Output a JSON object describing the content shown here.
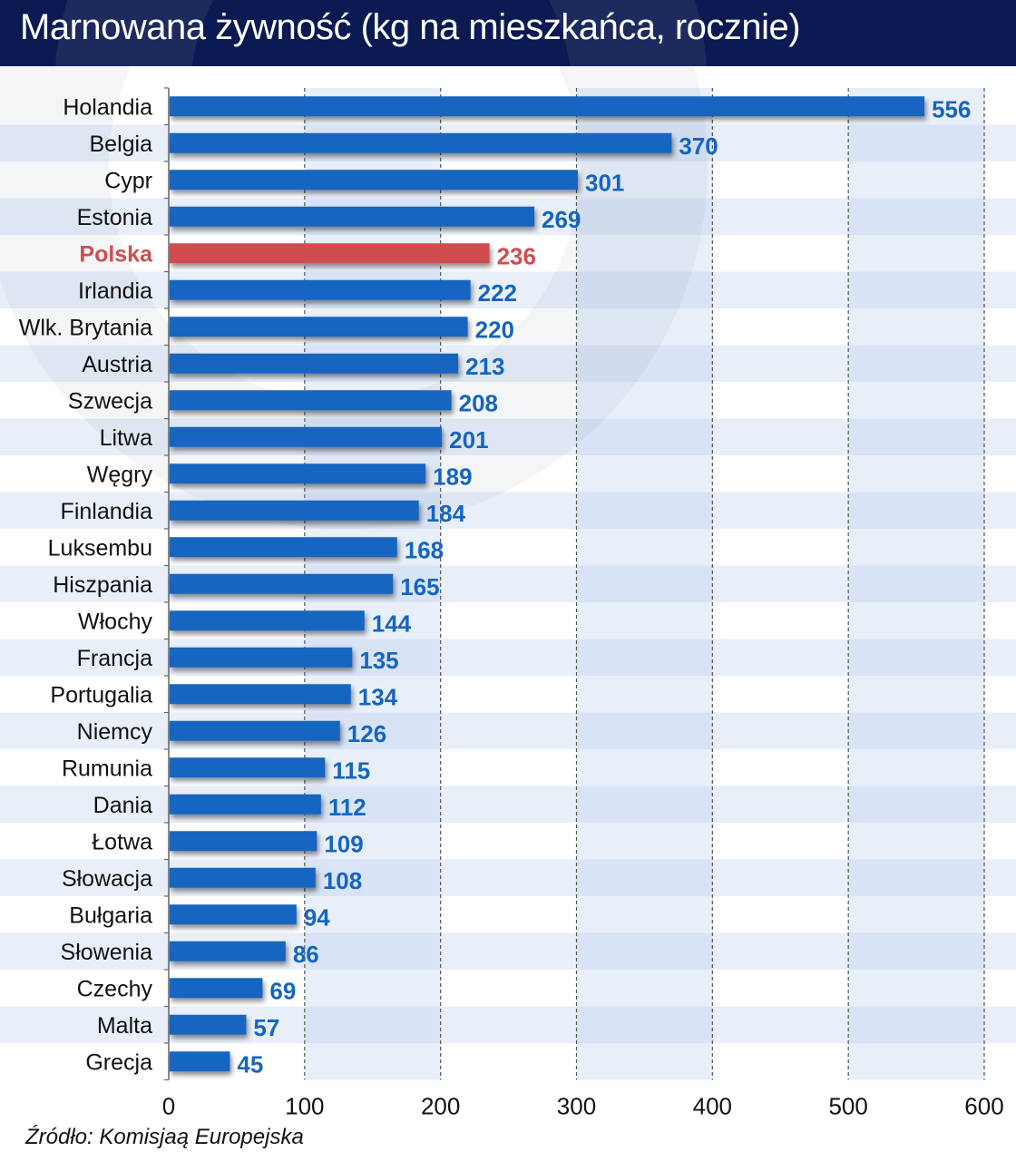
{
  "header": {
    "title": "Marnowana żywność (kg na mieszkańca, rocznie)"
  },
  "source": "Źródło: Komisjaą Europejska",
  "colors": {
    "header_bg": "#0b1a52",
    "bar": "#1565c0",
    "highlight": "#d04d50",
    "label_text": "#111111",
    "value_text": "#1565c0"
  },
  "chart_data": {
    "type": "bar",
    "orientation": "horizontal",
    "title": "Marnowana żywność (kg na mieszkańca, rocznie)",
    "xlabel": "",
    "ylabel": "",
    "xlim": [
      0,
      600
    ],
    "xticks": [
      0,
      100,
      200,
      300,
      400,
      500,
      600
    ],
    "xtick_labels": [
      "0",
      "100",
      "200",
      "300",
      "400",
      "500",
      "600"
    ],
    "grid": true,
    "legend": "none",
    "categories": [
      "Holandia",
      "Belgia",
      "Cypr",
      "Estonia",
      "Polska",
      "Irlandia",
      "Wlk. Brytania",
      "Austria",
      "Szwecja",
      "Litwa",
      "Węgry",
      "Finlandia",
      "Luksembu",
      "Hiszpania",
      "Włochy",
      "Francja",
      "Portugalia",
      "Niemcy",
      "Rumunia",
      "Dania",
      "Łotwa",
      "Słowacja",
      "Bułgaria",
      "Słowenia",
      "Czechy",
      "Malta",
      "Grecja"
    ],
    "values": [
      556,
      370,
      301,
      269,
      236,
      222,
      220,
      213,
      208,
      201,
      189,
      184,
      168,
      165,
      144,
      135,
      134,
      126,
      115,
      112,
      109,
      108,
      94,
      86,
      69,
      57,
      45
    ],
    "value_labels": [
      "556",
      "370",
      "301",
      "269",
      "236",
      "222",
      "220",
      "213",
      "208",
      "201",
      "189",
      "184",
      "168",
      "165",
      "144",
      "135",
      "134",
      "126",
      "115",
      "112",
      "109",
      "108",
      "94",
      "86",
      "69",
      "57",
      "45"
    ],
    "highlight": "Polska"
  }
}
